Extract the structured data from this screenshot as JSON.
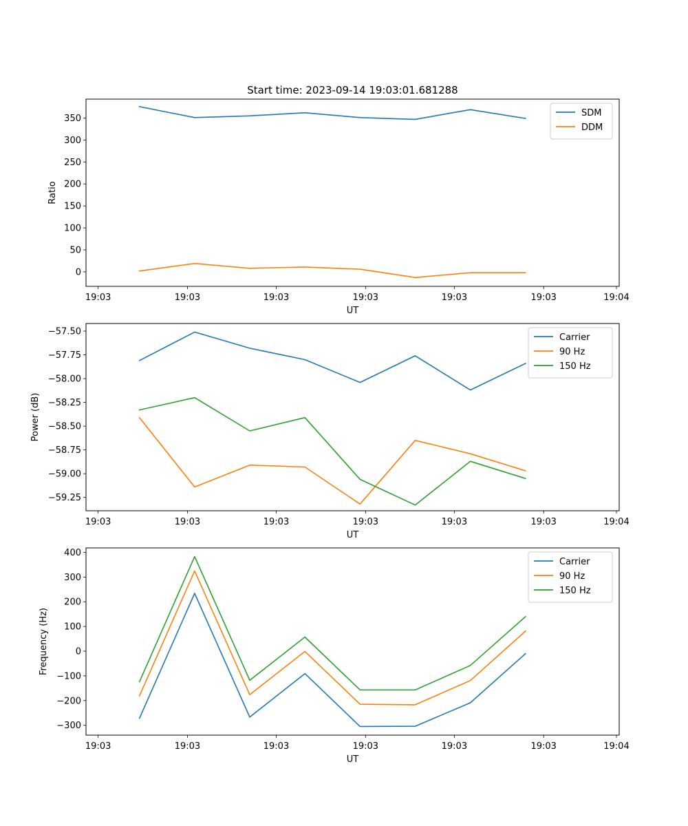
{
  "chart_data": [
    {
      "type": "line",
      "title": "Start time: 2023-09-14 19:03:01.681288",
      "xlabel": "UT",
      "ylabel": "Ratio",
      "xlim": [
        -0.97,
        8.7
      ],
      "ylim": [
        -33,
        393
      ],
      "x_tick_values": [
        -0.75,
        0.87,
        2.48,
        4.1,
        5.71,
        7.33,
        8.65
      ],
      "x_tick_labels": [
        "19:03",
        "19:03",
        "19:03",
        "19:03",
        "19:03",
        "19:03",
        "19:04"
      ],
      "y_ticks": [
        0,
        50,
        100,
        150,
        200,
        250,
        300,
        350
      ],
      "legend_position": "upper-right",
      "x": [
        0,
        1,
        2,
        3,
        4,
        5,
        6,
        7
      ],
      "series": [
        {
          "name": "SDM",
          "color": "#1f77b4",
          "values": [
            376,
            351,
            355,
            362,
            351,
            347,
            369,
            349
          ]
        },
        {
          "name": "DDM",
          "color": "#ff7f0e",
          "values": [
            2,
            19,
            8,
            11,
            6,
            -13,
            -2,
            -2
          ]
        }
      ]
    },
    {
      "type": "line",
      "title": "",
      "xlabel": "UT",
      "ylabel": "Power (dB)",
      "xlim": [
        -0.97,
        8.7
      ],
      "ylim": [
        -59.39,
        -57.42
      ],
      "x_tick_values": [
        -0.75,
        0.87,
        2.48,
        4.1,
        5.71,
        7.33,
        8.65
      ],
      "x_tick_labels": [
        "19:03",
        "19:03",
        "19:03",
        "19:03",
        "19:03",
        "19:03",
        "19:04"
      ],
      "y_ticks": [
        -59.25,
        -59.0,
        -58.75,
        -58.5,
        -58.25,
        -58.0,
        -57.75,
        -57.5
      ],
      "y_tick_labels": [
        "−59.25",
        "−59.00",
        "−58.75",
        "−58.50",
        "−58.25",
        "−58.00",
        "−57.75",
        "−57.50"
      ],
      "legend_position": "upper-right",
      "x": [
        0,
        1,
        2,
        3,
        4,
        5,
        6,
        7
      ],
      "series": [
        {
          "name": "Carrier",
          "color": "#1f77b4",
          "values": [
            -57.81,
            -57.51,
            -57.68,
            -57.8,
            -58.04,
            -57.76,
            -58.12,
            -57.84
          ]
        },
        {
          "name": "90 Hz",
          "color": "#ff7f0e",
          "values": [
            -58.41,
            -59.14,
            -58.91,
            -58.93,
            -59.32,
            -58.65,
            -58.79,
            -58.97
          ]
        },
        {
          "name": "150 Hz",
          "color": "#2ca02c",
          "values": [
            -58.33,
            -58.2,
            -58.55,
            -58.41,
            -59.06,
            -59.33,
            -58.87,
            -59.05
          ]
        }
      ]
    },
    {
      "type": "line",
      "title": "",
      "xlabel": "UT",
      "ylabel": "Frequency (Hz)",
      "xlim": [
        -0.97,
        8.7
      ],
      "ylim": [
        -340,
        418
      ],
      "x_tick_values": [
        -0.75,
        0.87,
        2.48,
        4.1,
        5.71,
        7.33,
        8.65
      ],
      "x_tick_labels": [
        "19:03",
        "19:03",
        "19:03",
        "19:03",
        "19:03",
        "19:03",
        "19:04"
      ],
      "y_ticks": [
        -300,
        -200,
        -100,
        0,
        100,
        200,
        300,
        400
      ],
      "y_tick_labels": [
        "−300",
        "−200",
        "−100",
        "0",
        "100",
        "200",
        "300",
        "400"
      ],
      "legend_position": "upper-right",
      "x": [
        0,
        1,
        2,
        3,
        4,
        5,
        6,
        7
      ],
      "series": [
        {
          "name": "Carrier",
          "color": "#1f77b4",
          "values": [
            -272,
            234,
            -267,
            -91,
            -305,
            -304,
            -209,
            -10
          ]
        },
        {
          "name": "90 Hz",
          "color": "#ff7f0e",
          "values": [
            -181,
            325,
            -176,
            -1,
            -215,
            -217,
            -119,
            81
          ]
        },
        {
          "name": "150 Hz",
          "color": "#2ca02c",
          "values": [
            -124,
            383,
            -118,
            57,
            -157,
            -157,
            -58,
            140
          ]
        }
      ]
    }
  ]
}
